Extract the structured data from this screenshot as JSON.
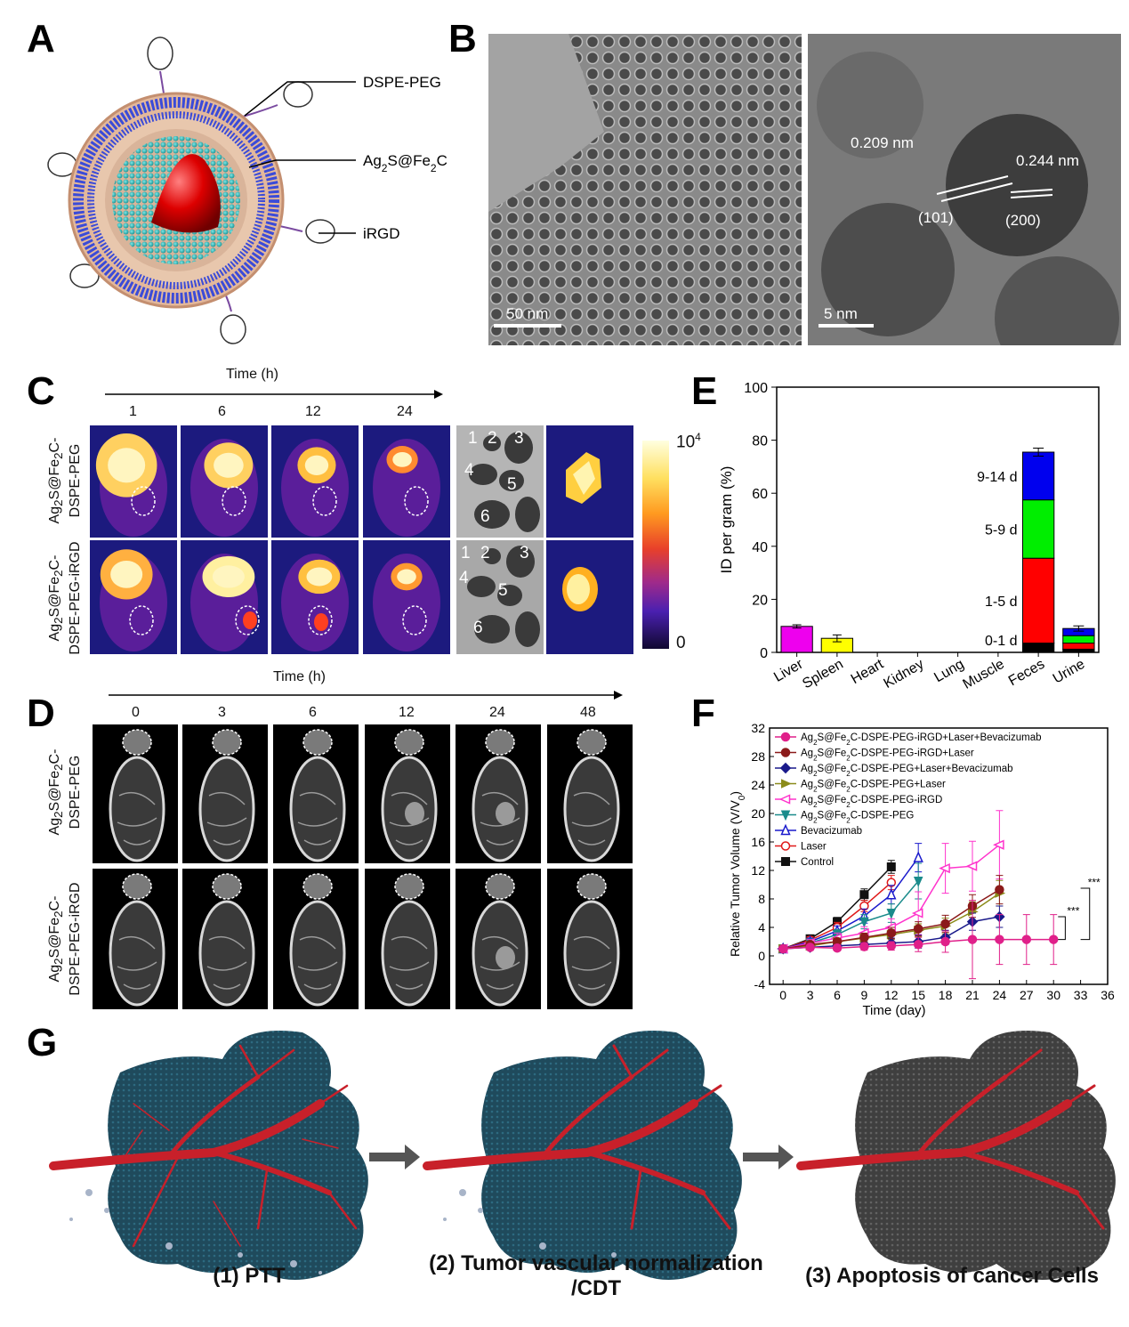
{
  "panels": {
    "a": "A",
    "b": "B",
    "c": "C",
    "d": "D",
    "e": "E",
    "f": "F",
    "g": "G"
  },
  "panel_a": {
    "labels": [
      "DSPE-PEG",
      "Ag2S@Fe2C",
      "iRGD"
    ]
  },
  "panel_b": {
    "scale_left": "50 nm",
    "scale_right": "5 nm",
    "d1": "0.209 nm",
    "d2": "0.244 nm",
    "p1": "(101)",
    "p2": "(200)"
  },
  "panel_c": {
    "axis": "Time (h)",
    "times": [
      "1",
      "6",
      "12",
      "24"
    ],
    "row1": "Ag2S@Fe2C-\nDSPE-PEG",
    "row2": "Ag2S@Fe2C-\nDSPE-PEG-iRGD",
    "organs_row1": [
      "1",
      "2",
      "3",
      "4",
      "5",
      "6"
    ],
    "organs_row2": [
      "1",
      "2",
      "3",
      "4",
      "5",
      "6"
    ],
    "colorbar_max": "10",
    "colorbar_max_exp": "4",
    "colorbar_min": "0"
  },
  "panel_d": {
    "axis": "Time (h)",
    "times": [
      "0",
      "3",
      "6",
      "12",
      "24",
      "48"
    ],
    "row1": "Ag2S@Fe2C-\nDSPE-PEG",
    "row2": "Ag2S@Fe2C-\nDSPE-PEG-iRGD"
  },
  "panel_g": {
    "captions": [
      "(1) PTT",
      "(2) Tumor vascular normalization\n/CDT",
      "(3) Apoptosis of cancer Cells"
    ],
    "colors": {
      "tumor": "#1f4a5c",
      "tumor_dead": "#4a4a4a",
      "vessel": "#c8202a"
    }
  },
  "chart_data": [
    {
      "type": "bar",
      "panel": "E",
      "ylabel": "ID per gram (%)",
      "ylim": [
        0,
        100
      ],
      "yticks": [
        0,
        20,
        40,
        60,
        80,
        100
      ],
      "categories": [
        "Liver",
        "Spleen",
        "Heart",
        "Kidney",
        "Lung",
        "Muscle",
        "Feces",
        "Urine"
      ],
      "series": [
        {
          "name": "0-1 d",
          "color": "#000000",
          "values": [
            0,
            0,
            0,
            0,
            0,
            0,
            3.5,
            1.2
          ]
        },
        {
          "name": "1-5 d",
          "color": "#ff0000",
          "values": [
            0,
            0,
            0,
            0,
            0,
            0,
            32,
            2.3
          ]
        },
        {
          "name": "5-9 d",
          "color": "#00ee00",
          "values": [
            0,
            0,
            0,
            0,
            0,
            0,
            22,
            2.8
          ]
        },
        {
          "name": "9-14 d",
          "color": "#0000ee",
          "values": [
            0,
            0,
            0,
            0,
            0,
            0,
            18,
            2.7
          ]
        }
      ],
      "single": [
        {
          "category": "Liver",
          "value": 9.8,
          "error": 0.6,
          "color": "#ee00ee"
        },
        {
          "category": "Spleen",
          "value": 5.3,
          "error": 1.3,
          "color": "#ffff00"
        }
      ],
      "stack_errors": {
        "Feces": 1.5,
        "Urine": 1.0
      }
    },
    {
      "type": "line",
      "panel": "F",
      "xlabel": "Time (day)",
      "ylabel": "Relative Tumor Volume (V/V",
      "ylabel_sub": "0",
      "xlim": [
        -1.5,
        36
      ],
      "ylim": [
        -4,
        32
      ],
      "xticks": [
        0,
        3,
        6,
        9,
        12,
        15,
        18,
        21,
        24,
        27,
        30,
        33,
        36
      ],
      "yticks": [
        -4,
        0,
        4,
        8,
        12,
        16,
        20,
        24,
        28,
        32
      ],
      "significance": "***",
      "series": [
        {
          "name": "Ag2S@Fe2C-DSPE-PEG-iRGD+Laser+Bevacizumab",
          "color": "#e0208a",
          "marker": "circle-half",
          "x": [
            0,
            3,
            6,
            9,
            12,
            15,
            18,
            21,
            24,
            27,
            30
          ],
          "y": [
            1,
            1.2,
            1.1,
            1.3,
            1.4,
            1.6,
            2.0,
            2.3,
            2.3,
            2.3,
            2.3
          ],
          "err": [
            0.3,
            0.4,
            0.4,
            0.5,
            0.6,
            1.0,
            1.5,
            5.5,
            3.5,
            3.5,
            3.5
          ]
        },
        {
          "name": "Ag2S@Fe2C-DSPE-PEG-iRGD+Laser",
          "color": "#8b1a1a",
          "marker": "circle-half",
          "x": [
            0,
            3,
            6,
            9,
            12,
            15,
            18,
            21,
            24
          ],
          "y": [
            1,
            1.6,
            2.0,
            2.6,
            3.2,
            3.8,
            4.5,
            7.0,
            9.3
          ],
          "err": [
            0.3,
            0.4,
            0.5,
            0.6,
            0.8,
            1.0,
            1.2,
            1.6,
            2.0
          ]
        },
        {
          "name": "Ag2S@Fe2C-DSPE-PEG+Laser+Bevacizumab",
          "color": "#1a1a8b",
          "marker": "diamond-half",
          "x": [
            0,
            3,
            6,
            9,
            12,
            15,
            18,
            21,
            24
          ],
          "y": [
            1,
            1.2,
            1.4,
            1.6,
            1.8,
            2.0,
            2.6,
            4.8,
            5.5
          ],
          "err": [
            0.3,
            0.4,
            0.5,
            0.6,
            0.7,
            0.9,
            1.0,
            1.2,
            1.5
          ]
        },
        {
          "name": "Ag2S@Fe2C-DSPE-PEG+Laser",
          "color": "#8b8b1a",
          "marker": "triangle-right",
          "x": [
            0,
            3,
            6,
            9,
            12,
            15,
            18,
            21,
            24
          ],
          "y": [
            1,
            1.4,
            2.0,
            2.5,
            3.0,
            3.6,
            4.2,
            6.2,
            8.8
          ],
          "err": [
            0.3,
            0.4,
            0.5,
            0.6,
            0.7,
            0.9,
            1.1,
            1.4,
            1.8
          ]
        },
        {
          "name": "Ag2S@Fe2C-DSPE-PEG-iRGD",
          "color": "#ff33cc",
          "marker": "triangle-left",
          "x": [
            0,
            3,
            6,
            9,
            12,
            15,
            18,
            21,
            24
          ],
          "y": [
            1,
            1.8,
            2.5,
            3.2,
            4.0,
            6.0,
            12.3,
            12.6,
            15.6
          ],
          "err": [
            0.3,
            0.5,
            0.7,
            0.9,
            1.2,
            3.0,
            3.5,
            3.5,
            4.8
          ]
        },
        {
          "name": "Ag2S@Fe2C-DSPE-PEG",
          "color": "#1a8b8b",
          "marker": "triangle-down",
          "x": [
            0,
            3,
            6,
            9,
            12,
            15
          ],
          "y": [
            1,
            1.8,
            3.0,
            4.8,
            6.0,
            10.5
          ],
          "err": [
            0.3,
            0.5,
            0.7,
            1.0,
            1.3,
            2.5
          ]
        },
        {
          "name": "Bevacizumab",
          "color": "#1a1acc",
          "marker": "triangle-up",
          "x": [
            0,
            3,
            6,
            9,
            12,
            15
          ],
          "y": [
            1,
            2.0,
            3.5,
            5.6,
            8.6,
            13.8
          ],
          "err": [
            0.3,
            0.5,
            0.7,
            1.0,
            1.3,
            2.0
          ]
        },
        {
          "name": "Laser",
          "color": "#e01a1a",
          "marker": "circle",
          "x": [
            0,
            3,
            6,
            9,
            12
          ],
          "y": [
            1,
            2.2,
            4.0,
            7.0,
            10.3
          ],
          "err": [
            0.3,
            0.5,
            0.7,
            0.8,
            1.0
          ]
        },
        {
          "name": "Control",
          "color": "#111111",
          "marker": "square-half",
          "x": [
            0,
            3,
            6,
            9,
            12
          ],
          "y": [
            1,
            2.4,
            4.8,
            8.6,
            12.5
          ],
          "err": [
            0.3,
            0.5,
            0.6,
            0.8,
            0.9
          ]
        }
      ]
    }
  ]
}
